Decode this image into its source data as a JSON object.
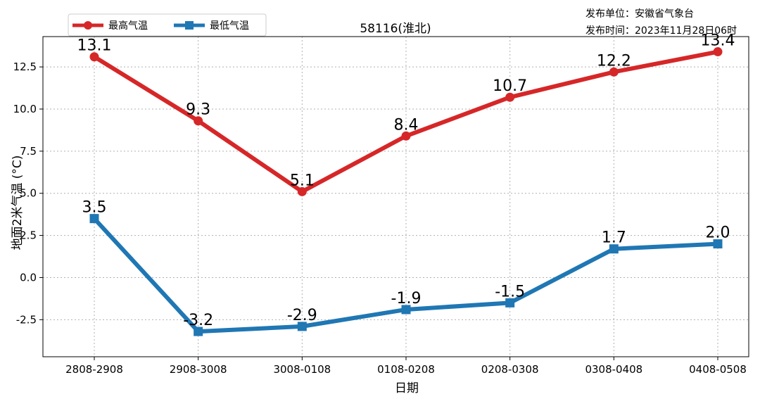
{
  "chart_data": {
    "type": "line",
    "title": "58116(淮北)",
    "issuer_lines": [
      "发布单位：安徽省气象台",
      "发布时间：2023年11月28日06时"
    ],
    "xlabel": "日期",
    "ylabel": "地面2米气温 (°C)",
    "categories": [
      "2808-2908",
      "2908-3008",
      "3008-0108",
      "0108-0208",
      "0208-0308",
      "0308-0408",
      "0408-0508"
    ],
    "yticks": [
      "-2.5",
      "0.0",
      "2.5",
      "5.0",
      "7.5",
      "10.0",
      "12.5"
    ],
    "ylim": [
      -4.7,
      14.3
    ],
    "grid": true,
    "legend_position": "top-left",
    "series": [
      {
        "name": "最高气温",
        "color": "#d62728",
        "marker": "circle",
        "values": [
          13.1,
          9.3,
          5.1,
          8.4,
          10.7,
          12.2,
          13.4
        ],
        "labels": [
          "13.1",
          "9.3",
          "5.1",
          "8.4",
          "10.7",
          "12.2",
          "13.4"
        ]
      },
      {
        "name": "最低气温",
        "color": "#1f77b4",
        "marker": "square",
        "values": [
          3.5,
          -3.2,
          -2.9,
          -1.9,
          -1.5,
          1.7,
          2.0
        ],
        "labels": [
          "3.5",
          "-3.2",
          "-2.9",
          "-1.9",
          "-1.5",
          "1.7",
          "2.0"
        ]
      }
    ]
  }
}
